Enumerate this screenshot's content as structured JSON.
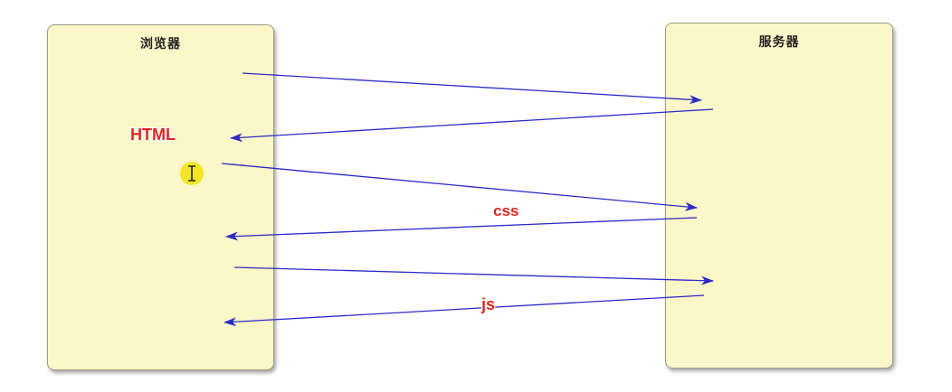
{
  "browser": {
    "title": "浏览器"
  },
  "server": {
    "title": "服务器"
  },
  "labels": {
    "html": "HTML",
    "css": "css",
    "js": "js"
  },
  "colors": {
    "panel_fill": "#fbf7c8",
    "arrow": "#2b2bc4",
    "label_text": "#e0261f",
    "cursor_highlight": "#f3e626"
  },
  "icons": {
    "cursor": "text-cursor-icon"
  }
}
